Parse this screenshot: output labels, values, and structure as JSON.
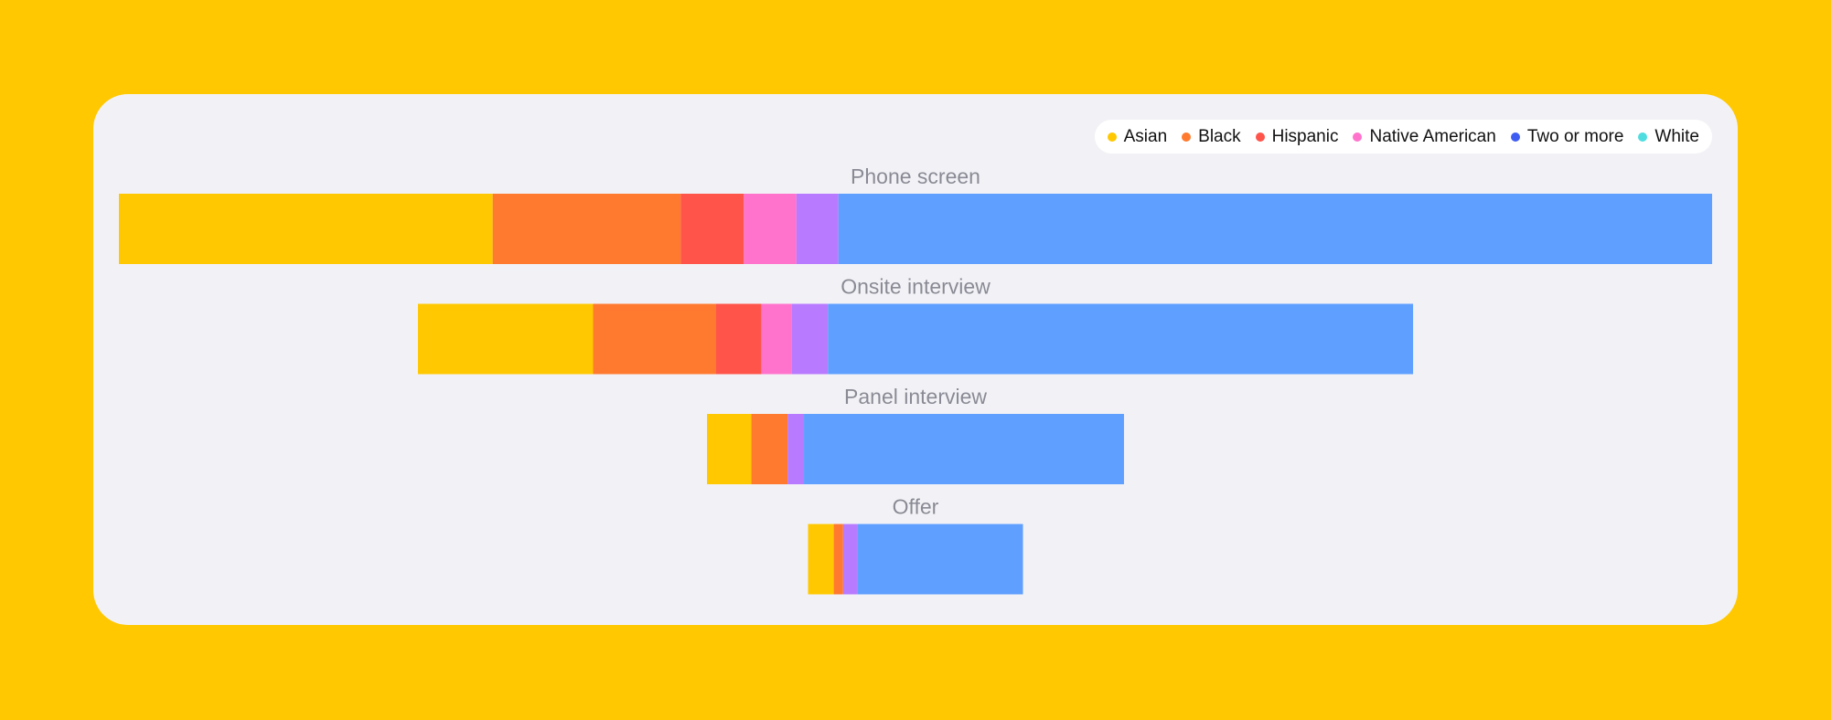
{
  "chart_data": {
    "type": "funnel",
    "categories": [
      "Phone screen",
      "Onsite interview",
      "Panel interview",
      "Offer"
    ],
    "series": [
      {
        "name": "Asian",
        "color": "#ffc800",
        "legend_color": "#ffc800",
        "values": [
          320,
          150,
          38,
          22
        ]
      },
      {
        "name": "Black",
        "color": "#ff7a2f",
        "legend_color": "#ff7a2f",
        "values": [
          161,
          105,
          31,
          8
        ]
      },
      {
        "name": "Hispanic",
        "color": "#ff544a",
        "legend_color": "#ff544a",
        "values": [
          54,
          39,
          0,
          0
        ]
      },
      {
        "name": "Native American",
        "color": "#ff73cc",
        "legend_color": "#ff73cc",
        "values": [
          45,
          26,
          0,
          0
        ]
      },
      {
        "name": "Two or more",
        "color": "#b87bff",
        "legend_color": "#3f5cf2",
        "values": [
          36,
          31,
          14,
          12
        ]
      },
      {
        "name": "White",
        "color": "#5f9fff",
        "legend_color": "#4fdde0",
        "values": [
          748,
          501,
          274,
          142
        ]
      }
    ],
    "legend": "top-right"
  }
}
